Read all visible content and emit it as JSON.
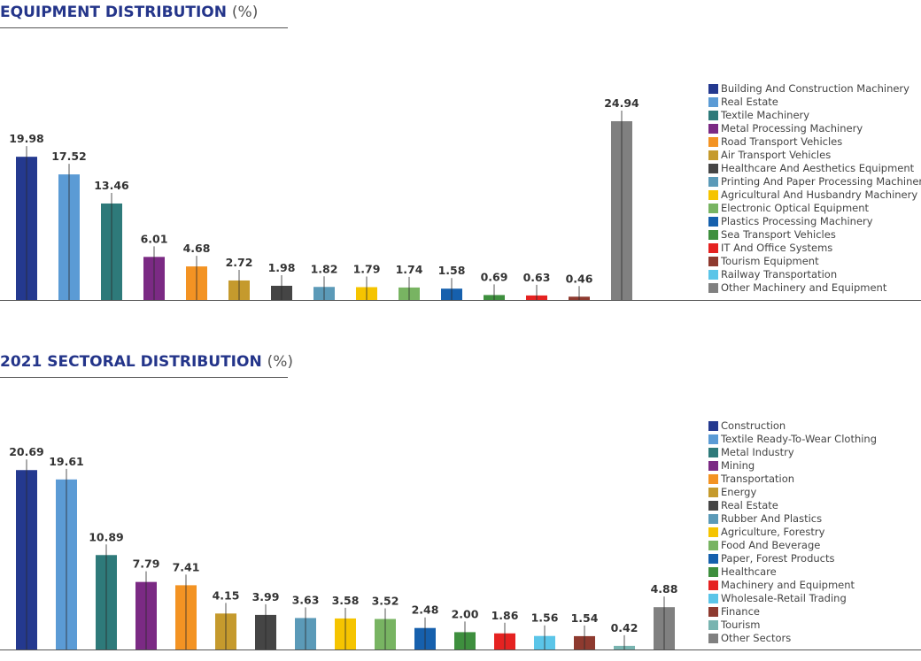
{
  "chart_data": [
    {
      "type": "bar",
      "title": "EQUIPMENT DISTRIBUTION",
      "unit": "(%)",
      "categories": [
        "Building And Construction Machinery",
        "Real Estate",
        "Textile Machinery",
        "Metal Processing Machinery",
        "Road Transport Vehicles",
        "Air Transport Vehicles",
        "Healthcare And Aesthetics Equipment",
        "Printing And Paper Processing Machinery",
        "Agricultural And Husbandry Machinery",
        "Electronic Optical Equipment",
        "Plastics Processing Machinery",
        "Sea Transport Vehicles",
        "IT And Office Systems",
        "Tourism Equipment",
        "Railway Transportation",
        "Other Machinery and Equipment"
      ],
      "values": [
        19.98,
        17.52,
        13.46,
        6.01,
        4.68,
        2.72,
        1.98,
        1.82,
        1.79,
        1.74,
        1.58,
        0.69,
        0.63,
        0.46,
        0,
        24.94
      ],
      "value_labels": [
        "19.98",
        "17.52",
        "13.46",
        "6.01",
        "4.68",
        "2.72",
        "1.98",
        "1.82",
        "1.79",
        "1.74",
        "1.58",
        "0.69",
        "0.63",
        "0.46",
        "",
        "24.94"
      ],
      "colors": [
        "#24398f",
        "#5b9bd5",
        "#2e7a7a",
        "#7b2a84",
        "#f39323",
        "#c59a2d",
        "#454545",
        "#5b9ab8",
        "#f5c400",
        "#78b462",
        "#1660ad",
        "#3e8f3e",
        "#e52221",
        "#8e3a2f",
        "#5bc5e8",
        "#808080"
      ],
      "legend_position": "right",
      "grid": false
    },
    {
      "type": "bar",
      "title": "2021 SECTORAL DISTRIBUTION",
      "unit": "(%)",
      "categories": [
        "Construction",
        "Textile Ready-To-Wear Clothing",
        "Metal Industry",
        "Mining",
        "Transportation",
        "Energy",
        "Real Estate",
        "Rubber And Plastics",
        "Agriculture, Forestry",
        "Food And Beverage",
        "Paper, Forest Products",
        "Healthcare",
        "Machinery and Equipment",
        "Wholesale-Retail Trading",
        "Finance",
        "Tourism",
        "Other Sectors"
      ],
      "values": [
        20.69,
        19.61,
        10.89,
        7.79,
        7.41,
        4.15,
        3.99,
        3.63,
        3.58,
        3.52,
        2.48,
        2.0,
        1.86,
        1.56,
        1.54,
        0.42,
        4.88
      ],
      "value_labels": [
        "20.69",
        "19.61",
        "10.89",
        "7.79",
        "7.41",
        "4.15",
        "3.99",
        "3.63",
        "3.58",
        "3.52",
        "2.48",
        "2.00",
        "1.86",
        "1.56",
        "1.54",
        "0.42",
        "4.88"
      ],
      "colors": [
        "#24398f",
        "#5b9bd5",
        "#2e7a7a",
        "#7b2a84",
        "#f39323",
        "#c59a2d",
        "#454545",
        "#5b9ab8",
        "#f5c400",
        "#78b462",
        "#1660ad",
        "#3e8f3e",
        "#e52221",
        "#5bc5e8",
        "#8e3a2f",
        "#78b4b0",
        "#808080"
      ],
      "legend_position": "right",
      "grid": false
    }
  ]
}
